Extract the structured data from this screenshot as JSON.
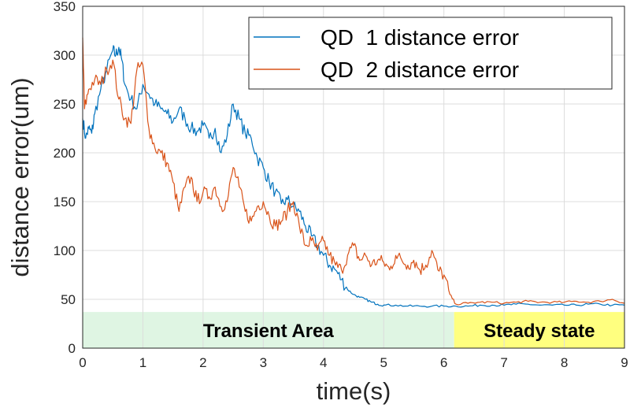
{
  "chart_data": {
    "type": "line",
    "title": "",
    "xlabel": "time(s)",
    "ylabel": "distance error(um)",
    "xlim": [
      0,
      9
    ],
    "ylim": [
      0,
      350
    ],
    "xticks": [
      0,
      1,
      2,
      3,
      4,
      5,
      6,
      7,
      8,
      9
    ],
    "yticks": [
      0,
      50,
      100,
      150,
      200,
      250,
      300,
      350
    ],
    "grid": true,
    "legend_position": "top-right",
    "series": [
      {
        "name": "QD  1 distance error",
        "color": "#0072BD",
        "x": [
          0,
          0.05,
          0.1,
          0.15,
          0.2,
          0.3,
          0.4,
          0.5,
          0.55,
          0.6,
          0.65,
          0.7,
          0.8,
          0.9,
          1.0,
          1.1,
          1.2,
          1.3,
          1.4,
          1.5,
          1.6,
          1.7,
          1.8,
          1.9,
          2.0,
          2.1,
          2.2,
          2.3,
          2.4,
          2.5,
          2.6,
          2.7,
          2.8,
          2.9,
          3.0,
          3.1,
          3.2,
          3.3,
          3.4,
          3.5,
          3.6,
          3.7,
          3.8,
          3.9,
          4.0,
          4.1,
          4.2,
          4.3,
          4.4,
          4.5,
          4.6,
          4.7,
          4.8,
          4.9,
          5.0,
          5.2,
          5.4,
          5.6,
          5.8,
          6.0,
          6.2,
          6.4,
          6.6,
          6.8,
          7.0,
          7.2,
          7.4,
          7.6,
          7.8,
          8.0,
          8.2,
          8.4,
          8.6,
          8.8,
          9.0
        ],
        "values": [
          235,
          215,
          225,
          220,
          240,
          265,
          285,
          305,
          300,
          308,
          295,
          270,
          255,
          245,
          270,
          260,
          250,
          245,
          240,
          232,
          245,
          235,
          225,
          222,
          228,
          215,
          225,
          200,
          218,
          250,
          235,
          220,
          215,
          195,
          185,
          170,
          160,
          148,
          152,
          145,
          140,
          125,
          115,
          105,
          95,
          85,
          80,
          70,
          60,
          55,
          52,
          50,
          47,
          45,
          44,
          44,
          43,
          43,
          43,
          43,
          43,
          43,
          44,
          44,
          44,
          45,
          45,
          44,
          44,
          44,
          44,
          45,
          45,
          44,
          44
        ]
      },
      {
        "name": "QD  2 distance error",
        "color": "#D95319",
        "x": [
          0,
          0.03,
          0.1,
          0.2,
          0.3,
          0.4,
          0.5,
          0.6,
          0.7,
          0.8,
          0.9,
          1.0,
          1.1,
          1.2,
          1.3,
          1.4,
          1.5,
          1.6,
          1.7,
          1.8,
          1.9,
          2.0,
          2.1,
          2.2,
          2.3,
          2.4,
          2.5,
          2.6,
          2.7,
          2.8,
          2.9,
          3.0,
          3.1,
          3.2,
          3.3,
          3.4,
          3.5,
          3.6,
          3.7,
          3.8,
          3.9,
          4.0,
          4.1,
          4.2,
          4.3,
          4.4,
          4.5,
          4.6,
          4.7,
          4.8,
          4.9,
          5.0,
          5.1,
          5.2,
          5.3,
          5.4,
          5.5,
          5.6,
          5.7,
          5.8,
          5.9,
          6.0,
          6.1,
          6.2,
          6.4,
          6.6,
          6.8,
          7.0,
          7.2,
          7.4,
          7.6,
          7.8,
          8.0,
          8.2,
          8.4,
          8.6,
          8.8,
          9.0
        ],
        "values": [
          318,
          245,
          265,
          275,
          270,
          285,
          295,
          255,
          235,
          230,
          285,
          290,
          225,
          205,
          200,
          190,
          170,
          140,
          165,
          175,
          150,
          160,
          155,
          165,
          145,
          150,
          185,
          165,
          140,
          130,
          145,
          150,
          135,
          125,
          130,
          140,
          150,
          125,
          105,
          110,
          100,
          110,
          95,
          85,
          80,
          95,
          105,
          90,
          95,
          85,
          90,
          88,
          80,
          95,
          90,
          85,
          90,
          80,
          85,
          100,
          80,
          75,
          55,
          45,
          46,
          47,
          47,
          46,
          47,
          48,
          47,
          47,
          47,
          48,
          47,
          48,
          50,
          46
        ]
      }
    ],
    "regions": [
      {
        "label": "Transient Area",
        "x_start": 0,
        "x_end": 6.17,
        "y_start": 0,
        "y_end": 37,
        "color": "#DFF5E3"
      },
      {
        "label": "Steady state",
        "x_start": 6.17,
        "x_end": 9,
        "y_start": 0,
        "y_end": 37,
        "color": "#FFFF7F"
      }
    ]
  }
}
